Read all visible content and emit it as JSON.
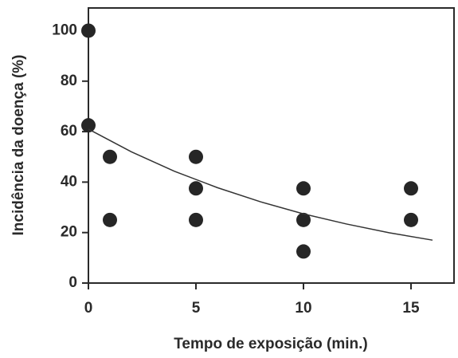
{
  "chart_data": {
    "type": "scatter",
    "x_label": "Tempo de exposição (min.)",
    "y_label": "Incidência da doença (%)",
    "xlim": [
      0,
      17
    ],
    "ylim": [
      0,
      109
    ],
    "xticks": [
      0,
      5,
      10,
      15
    ],
    "yticks": [
      0,
      20,
      40,
      60,
      80,
      100
    ],
    "series": [
      {
        "type": "scatter",
        "color": "#262626",
        "x": [
          0,
          0,
          1,
          1,
          5,
          5,
          5,
          10,
          10,
          10,
          15,
          15
        ],
        "values": [
          100,
          62.5,
          50,
          25,
          50,
          37.5,
          25,
          37.5,
          25,
          12.5,
          37.5,
          25
        ]
      },
      {
        "type": "line",
        "color": "#333333",
        "x": [
          0,
          2,
          4,
          6,
          8,
          10,
          12,
          14,
          16
        ],
        "values": [
          61,
          52,
          44.3,
          37.8,
          32.2,
          27.4,
          23.4,
          19.9,
          17
        ]
      }
    ]
  }
}
